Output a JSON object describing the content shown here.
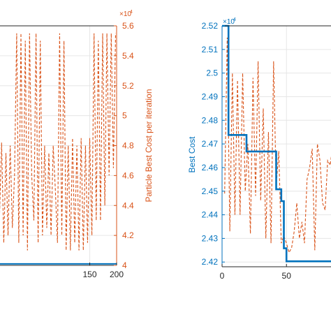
{
  "colors": {
    "blue": "#0072BD",
    "red": "#D95319",
    "grid": "#e6e6e6",
    "axis": "#262626"
  },
  "chart_data": [
    {
      "type": "line",
      "title": "",
      "xlabel": "",
      "xlim": [
        -30,
        200
      ],
      "xticks": [
        {
          "v": 150,
          "label": "150"
        },
        {
          "v": 200,
          "label": "200"
        }
      ],
      "ylabel_right": "Particle Best Cost per iteration",
      "y_right_lim": [
        4,
        5.6
      ],
      "y_right_exponent": "×10",
      "y_right_exponent_power": "4",
      "y_right_ticks": [
        {
          "v": 4,
          "label": "4"
        },
        {
          "v": 4.2,
          "label": "4.2"
        },
        {
          "v": 4.4,
          "label": "4.4"
        },
        {
          "v": 4.6,
          "label": "4.6"
        },
        {
          "v": 4.8,
          "label": "4.8"
        },
        {
          "v": 5,
          "label": "5"
        },
        {
          "v": 5.2,
          "label": "5.2"
        },
        {
          "v": 5.4,
          "label": "5.4"
        },
        {
          "v": 5.6,
          "label": "5.6"
        }
      ],
      "grid": true,
      "series": [
        {
          "axis": "right",
          "color": "blue",
          "style": "solid",
          "x": [
            -30,
            200
          ],
          "y": [
            4.01,
            4.01
          ]
        },
        {
          "axis": "right",
          "color": "red",
          "style": "dashed",
          "x": [
            -30,
            -26,
            -22,
            -18,
            -14,
            -10,
            -6,
            -2,
            2,
            6,
            10,
            14,
            18,
            22,
            26,
            30,
            34,
            38,
            42,
            46,
            50,
            54,
            58,
            62,
            66,
            70,
            74,
            78,
            82,
            86,
            90,
            94,
            98,
            102,
            106,
            110,
            114,
            118,
            122,
            126,
            130,
            134,
            138,
            142,
            146,
            150,
            154,
            158,
            162,
            166,
            170,
            174,
            178,
            182,
            186,
            190,
            194,
            198
          ],
          "y": [
            4.85,
            4.25,
            4.8,
            4.3,
            4.82,
            4.15,
            4.75,
            4.2,
            4.8,
            4.25,
            4.6,
            5.55,
            4.15,
            5.55,
            4.2,
            5.5,
            4.1,
            5.55,
            4.6,
            4.3,
            5.55,
            4.15,
            5.5,
            4.2,
            4.8,
            4.25,
            4.75,
            4.2,
            4.8,
            4.5,
            4.15,
            5.55,
            4.2,
            5.5,
            4.1,
            4.8,
            4.1,
            4.85,
            4.15,
            4.8,
            4.1,
            4.85,
            4.1,
            4.8,
            4.15,
            4.85,
            4.2,
            5.55,
            4.3,
            5.5,
            4.3,
            5.55,
            4.4,
            5.55,
            4.6,
            5.55,
            4.65,
            5.55
          ]
        }
      ]
    },
    {
      "type": "line",
      "title": "",
      "xlabel": "",
      "xlim": [
        0,
        90
      ],
      "xticks": [
        {
          "v": 0,
          "label": "0"
        },
        {
          "v": 50,
          "label": "50"
        }
      ],
      "ylabel": "Best Cost",
      "ylim": [
        2.418,
        2.52
      ],
      "y_exponent": "×10",
      "y_exponent_power": "4",
      "yticks": [
        {
          "v": 2.42,
          "label": "2.42"
        },
        {
          "v": 2.43,
          "label": "2.43"
        },
        {
          "v": 2.44,
          "label": "2.44"
        },
        {
          "v": 2.45,
          "label": "2.45"
        },
        {
          "v": 2.46,
          "label": "2.46"
        },
        {
          "v": 2.47,
          "label": "2.47"
        },
        {
          "v": 2.48,
          "label": "2.48"
        },
        {
          "v": 2.49,
          "label": "2.49"
        },
        {
          "v": 2.5,
          "label": "2.5"
        },
        {
          "v": 2.51,
          "label": "2.51"
        },
        {
          "v": 2.52,
          "label": "2.52"
        }
      ],
      "grid": true,
      "series": [
        {
          "axis": "left",
          "color": "blue",
          "style": "solid",
          "x": [
            0,
            5,
            5,
            8,
            8,
            19,
            19,
            31,
            31,
            42,
            42,
            44,
            44,
            46,
            46,
            48,
            48,
            50,
            50,
            90
          ],
          "y": [
            2.52,
            2.52,
            2.4738,
            2.4738,
            2.4738,
            2.4738,
            2.4668,
            2.4668,
            2.4668,
            2.4668,
            2.4508,
            2.4508,
            2.4508,
            2.4508,
            2.4458,
            2.4458,
            2.4258,
            2.4258,
            2.4203,
            2.4203
          ]
        },
        {
          "axis": "left",
          "color": "red",
          "style": "dashed",
          "x": [
            2,
            4,
            6,
            8,
            10,
            12,
            14,
            16,
            18,
            20,
            22,
            24,
            26,
            28,
            30,
            32,
            34,
            36,
            38,
            40,
            42,
            44,
            46,
            48,
            50,
            52,
            54,
            56,
            58,
            60,
            62,
            64,
            66,
            68,
            70,
            72,
            74,
            76,
            78,
            80,
            82,
            84,
            86,
            88
          ],
          "y": [
            2.449,
            2.515,
            2.433,
            2.5,
            2.44,
            2.497,
            2.44,
            2.5,
            2.45,
            2.47,
            2.432,
            2.498,
            2.448,
            2.505,
            2.446,
            2.485,
            2.43,
            2.475,
            2.428,
            2.505,
            2.452,
            2.467,
            2.428,
            2.431,
            2.428,
            2.424,
            2.426,
            2.433,
            2.445,
            2.43,
            2.437,
            2.428,
            2.455,
            2.46,
            2.468,
            2.425,
            2.47,
            2.463,
            2.445,
            2.442,
            2.463,
            2.461,
            2.47,
            2.48
          ]
        }
      ]
    }
  ]
}
